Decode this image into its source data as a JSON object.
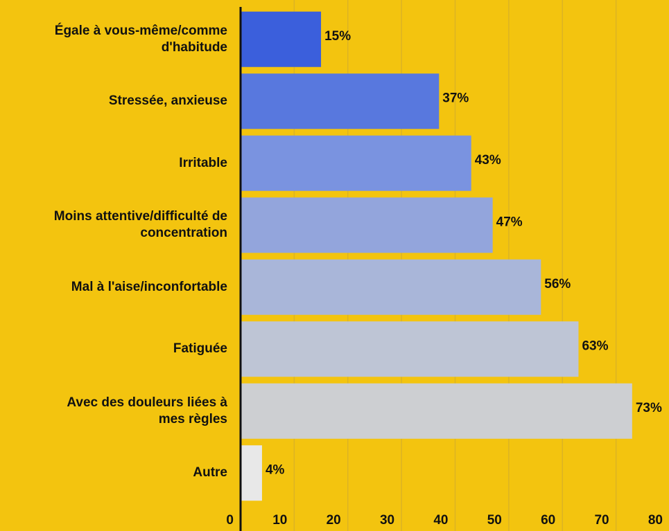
{
  "chart_data": {
    "type": "hbar",
    "categories": [
      "Égale à vous-même/comme\nd'habitude",
      "Stressée, anxieuse",
      "Irritable",
      "Moins attentive/difficulté de\nconcentration",
      "Mal à l'aise/inconfortable",
      "Fatiguée",
      "Avec des douleurs liées à\nmes règles",
      "Autre"
    ],
    "values": [
      15,
      37,
      43,
      47,
      56,
      63,
      73,
      4
    ],
    "value_labels": [
      "15%",
      "37%",
      "43%",
      "47%",
      "56%",
      "63%",
      "73%",
      "4%"
    ],
    "colors": [
      "#3b5fdc",
      "#5878de",
      "#7a93e0",
      "#93a5dc",
      "#a9b6d9",
      "#bec5d5",
      "#cdcfd2",
      "#e8e8e8"
    ],
    "xlim": [
      0,
      80
    ],
    "xticks": [
      0,
      10,
      20,
      30,
      40,
      50,
      60,
      70,
      80
    ],
    "grid": true
  }
}
